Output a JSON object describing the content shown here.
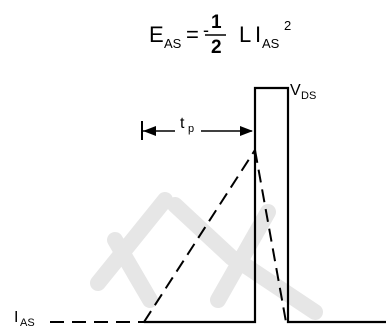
{
  "formula": {
    "lhs": "E",
    "lhs_sub": "AS",
    "equals": "=",
    "minus": "-",
    "numerator": "1",
    "denominator": "2",
    "inductance": "L",
    "current": "I",
    "current_sub": "AS",
    "exponent": "2"
  },
  "labels": {
    "vds_main": "V",
    "vds_sub": "DS",
    "tp_main": "t",
    "tp_sub": "p",
    "ias_main": "I",
    "ias_sub": "AS"
  },
  "colors": {
    "stroke": "#000000",
    "watermark": "#e6e6e6"
  }
}
